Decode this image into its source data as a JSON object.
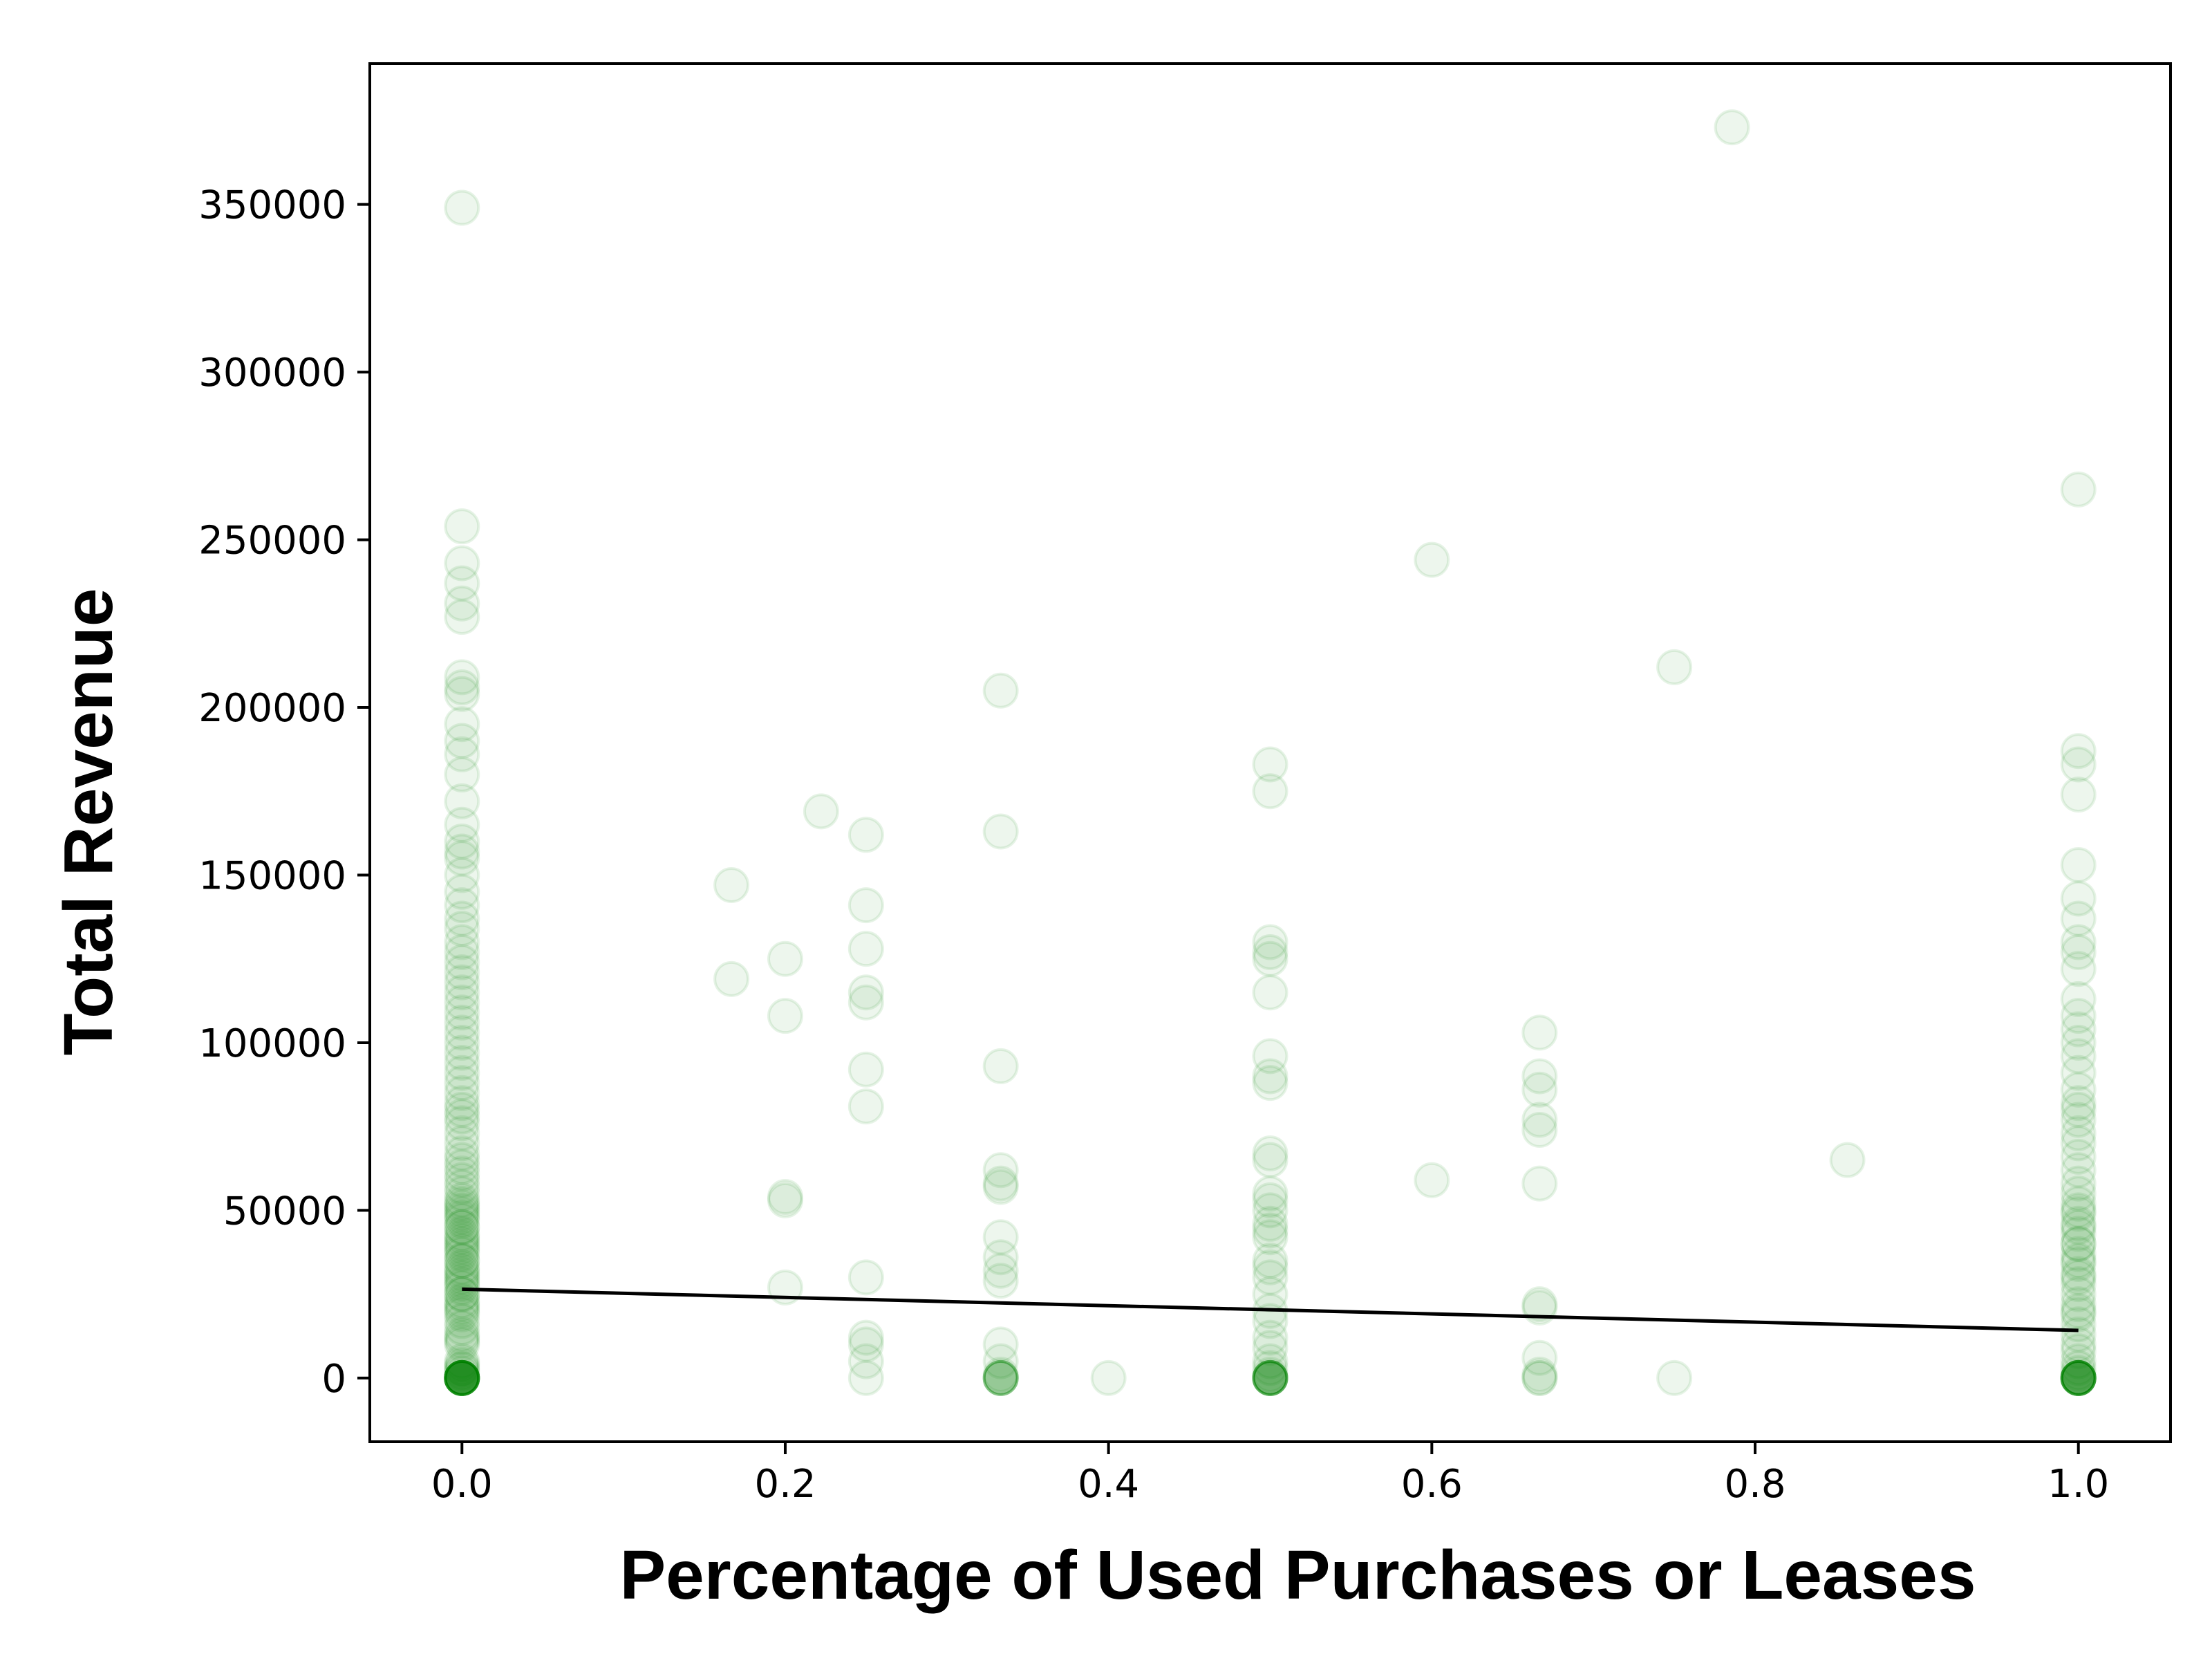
{
  "chart_data": {
    "type": "scatter",
    "title": "",
    "xlabel": "Percentage of Used Purchases or Leases",
    "ylabel": "Total Revenue",
    "xlim": [
      -0.057,
      1.057
    ],
    "ylim": [
      -19000,
      392000
    ],
    "x_ticks": [
      0.0,
      0.2,
      0.4,
      0.6,
      0.8,
      1.0
    ],
    "x_tick_labels": [
      "0.0",
      "0.2",
      "0.4",
      "0.6",
      "0.8",
      "1.0"
    ],
    "y_ticks": [
      0,
      50000,
      100000,
      150000,
      200000,
      250000,
      300000,
      350000
    ],
    "y_tick_labels": [
      "0",
      "50000",
      "100000",
      "150000",
      "200000",
      "250000",
      "300000",
      "350000"
    ],
    "grid": false,
    "legend": "none",
    "colors": {
      "points": "#008000",
      "trend_line": "#000000",
      "frame": "#000000"
    },
    "point_alpha": 0.07,
    "series": [
      {
        "type": "scatter",
        "points": [
          [
            0,
            0
          ],
          [
            0,
            0
          ],
          [
            0,
            0
          ],
          [
            0,
            0
          ],
          [
            0,
            0
          ],
          [
            0,
            0
          ],
          [
            0,
            0
          ],
          [
            0,
            0
          ],
          [
            0,
            0
          ],
          [
            0,
            0
          ],
          [
            0,
            0
          ],
          [
            0,
            0
          ],
          [
            0,
            0
          ],
          [
            0,
            0
          ],
          [
            0,
            0
          ],
          [
            0,
            0
          ],
          [
            0,
            0
          ],
          [
            0,
            0
          ],
          [
            0,
            0
          ],
          [
            0,
            0
          ],
          [
            0,
            1500
          ],
          [
            0,
            2500
          ],
          [
            0,
            3000
          ],
          [
            0,
            4000
          ],
          [
            0,
            5000
          ],
          [
            0,
            10000
          ],
          [
            0,
            11000
          ],
          [
            0,
            12000
          ],
          [
            0,
            13000
          ],
          [
            0,
            15000
          ],
          [
            0,
            17000
          ],
          [
            0,
            19000
          ],
          [
            0,
            21000
          ],
          [
            0,
            23000
          ],
          [
            0,
            25000
          ],
          [
            0,
            27000
          ],
          [
            0,
            29000
          ],
          [
            0,
            31000
          ],
          [
            0,
            33000
          ],
          [
            0,
            35000
          ],
          [
            0,
            37000
          ],
          [
            0,
            39000
          ],
          [
            0,
            41000
          ],
          [
            0,
            43000
          ],
          [
            0,
            45000
          ],
          [
            0,
            47000
          ],
          [
            0,
            49000
          ],
          [
            0,
            51000
          ],
          [
            0,
            53000
          ],
          [
            0,
            55000
          ],
          [
            0,
            57000
          ],
          [
            0,
            59000
          ],
          [
            0,
            20000
          ],
          [
            0,
            30000
          ],
          [
            0,
            40000
          ],
          [
            0,
            50000
          ],
          [
            0,
            45000
          ],
          [
            0,
            35000
          ],
          [
            0,
            25000
          ],
          [
            0,
            32000
          ],
          [
            0,
            38000
          ],
          [
            0,
            42000
          ],
          [
            0,
            48000
          ],
          [
            0,
            52000
          ],
          [
            0,
            28000
          ],
          [
            0,
            22000
          ],
          [
            0,
            61000
          ],
          [
            0,
            63000
          ],
          [
            0,
            65000
          ],
          [
            0,
            67000
          ],
          [
            0,
            70000
          ],
          [
            0,
            73000
          ],
          [
            0,
            76000
          ],
          [
            0,
            78000
          ],
          [
            0,
            80000
          ],
          [
            0,
            82000
          ],
          [
            0,
            85000
          ],
          [
            0,
            88000
          ],
          [
            0,
            91000
          ],
          [
            0,
            94000
          ],
          [
            0,
            97000
          ],
          [
            0,
            100000
          ],
          [
            0,
            103000
          ],
          [
            0,
            106000
          ],
          [
            0,
            109000
          ],
          [
            0,
            112000
          ],
          [
            0,
            115000
          ],
          [
            0,
            118000
          ],
          [
            0,
            121000
          ],
          [
            0,
            124000
          ],
          [
            0,
            127000
          ],
          [
            0,
            130000
          ],
          [
            0,
            134000
          ],
          [
            0,
            137000
          ],
          [
            0,
            141000
          ],
          [
            0,
            145000
          ],
          [
            0,
            150000
          ],
          [
            0,
            155000
          ],
          [
            0,
            157000
          ],
          [
            0,
            160000
          ],
          [
            0,
            165000
          ],
          [
            0,
            172000
          ],
          [
            0,
            180000
          ],
          [
            0,
            186000
          ],
          [
            0,
            190000
          ],
          [
            0,
            195000
          ],
          [
            0,
            204000
          ],
          [
            0,
            206000
          ],
          [
            0,
            209000
          ],
          [
            0,
            227000
          ],
          [
            0,
            231000
          ],
          [
            0,
            237000
          ],
          [
            0,
            243000
          ],
          [
            0,
            254000
          ],
          [
            0,
            349000
          ],
          [
            0.1667,
            119000
          ],
          [
            0.1667,
            147000
          ],
          [
            0.2,
            27000
          ],
          [
            0.2,
            53000
          ],
          [
            0.2,
            54000
          ],
          [
            0.2,
            108000
          ],
          [
            0.2,
            125000
          ],
          [
            0.2222,
            169000
          ],
          [
            0.25,
            0
          ],
          [
            0.25,
            5000
          ],
          [
            0.25,
            10000
          ],
          [
            0.25,
            12000
          ],
          [
            0.25,
            30000
          ],
          [
            0.25,
            81000
          ],
          [
            0.25,
            92000
          ],
          [
            0.25,
            112000
          ],
          [
            0.25,
            115000
          ],
          [
            0.25,
            128000
          ],
          [
            0.25,
            141000
          ],
          [
            0.25,
            162000
          ],
          [
            0.3333,
            0
          ],
          [
            0.3333,
            0
          ],
          [
            0.3333,
            0
          ],
          [
            0.3333,
            0
          ],
          [
            0.3333,
            0
          ],
          [
            0.3333,
            0
          ],
          [
            0.3333,
            1000
          ],
          [
            0.3333,
            5000
          ],
          [
            0.3333,
            10000
          ],
          [
            0.3333,
            29000
          ],
          [
            0.3333,
            32000
          ],
          [
            0.3333,
            36000
          ],
          [
            0.3333,
            42000
          ],
          [
            0.3333,
            57000
          ],
          [
            0.3333,
            58000
          ],
          [
            0.3333,
            62000
          ],
          [
            0.3333,
            93000
          ],
          [
            0.3333,
            163000
          ],
          [
            0.3333,
            205000
          ],
          [
            0.4,
            0
          ],
          [
            0.5,
            0
          ],
          [
            0.5,
            0
          ],
          [
            0.5,
            0
          ],
          [
            0.5,
            0
          ],
          [
            0.5,
            0
          ],
          [
            0.5,
            0
          ],
          [
            0.5,
            0
          ],
          [
            0.5,
            0
          ],
          [
            0.5,
            0
          ],
          [
            0.5,
            0
          ],
          [
            0.5,
            1000
          ],
          [
            0.5,
            3000
          ],
          [
            0.5,
            5000
          ],
          [
            0.5,
            9000
          ],
          [
            0.5,
            12000
          ],
          [
            0.5,
            17000
          ],
          [
            0.5,
            20000
          ],
          [
            0.5,
            25000
          ],
          [
            0.5,
            30000
          ],
          [
            0.5,
            33000
          ],
          [
            0.5,
            35000
          ],
          [
            0.5,
            42000
          ],
          [
            0.5,
            44000
          ],
          [
            0.5,
            46000
          ],
          [
            0.5,
            50000
          ],
          [
            0.5,
            53000
          ],
          [
            0.5,
            55000
          ],
          [
            0.5,
            65000
          ],
          [
            0.5,
            67000
          ],
          [
            0.5,
            88000
          ],
          [
            0.5,
            90000
          ],
          [
            0.5,
            96000
          ],
          [
            0.5,
            115000
          ],
          [
            0.5,
            125000
          ],
          [
            0.5,
            127000
          ],
          [
            0.5,
            130000
          ],
          [
            0.5,
            175000
          ],
          [
            0.5,
            183000
          ],
          [
            0.6,
            59000
          ],
          [
            0.6,
            244000
          ],
          [
            0.6667,
            0
          ],
          [
            0.6667,
            0
          ],
          [
            0.6667,
            1000
          ],
          [
            0.6667,
            6000
          ],
          [
            0.6667,
            21000
          ],
          [
            0.6667,
            22000
          ],
          [
            0.6667,
            58000
          ],
          [
            0.6667,
            74000
          ],
          [
            0.6667,
            77000
          ],
          [
            0.6667,
            86000
          ],
          [
            0.6667,
            90000
          ],
          [
            0.6667,
            103000
          ],
          [
            0.75,
            0
          ],
          [
            0.75,
            212000
          ],
          [
            0.7857,
            373000
          ],
          [
            0.8571,
            65000
          ],
          [
            1,
            0
          ],
          [
            1,
            0
          ],
          [
            1,
            0
          ],
          [
            1,
            0
          ],
          [
            1,
            0
          ],
          [
            1,
            0
          ],
          [
            1,
            0
          ],
          [
            1,
            0
          ],
          [
            1,
            0
          ],
          [
            1,
            0
          ],
          [
            1,
            0
          ],
          [
            1,
            0
          ],
          [
            1,
            0
          ],
          [
            1,
            0
          ],
          [
            1,
            0
          ],
          [
            1,
            1500
          ],
          [
            1,
            3000
          ],
          [
            1,
            5000
          ],
          [
            1,
            8000
          ],
          [
            1,
            10000
          ],
          [
            1,
            13000
          ],
          [
            1,
            16000
          ],
          [
            1,
            19000
          ],
          [
            1,
            22000
          ],
          [
            1,
            25000
          ],
          [
            1,
            28000
          ],
          [
            1,
            31000
          ],
          [
            1,
            34000
          ],
          [
            1,
            37000
          ],
          [
            1,
            40000
          ],
          [
            1,
            43000
          ],
          [
            1,
            46000
          ],
          [
            1,
            49000
          ],
          [
            1,
            52000
          ],
          [
            1,
            55000
          ],
          [
            1,
            58000
          ],
          [
            1,
            20000
          ],
          [
            1,
            30000
          ],
          [
            1,
            40000
          ],
          [
            1,
            50000
          ],
          [
            1,
            45000
          ],
          [
            1,
            35000
          ],
          [
            1,
            62000
          ],
          [
            1,
            66000
          ],
          [
            1,
            70000
          ],
          [
            1,
            73000
          ],
          [
            1,
            77000
          ],
          [
            1,
            80000
          ],
          [
            1,
            82000
          ],
          [
            1,
            86000
          ],
          [
            1,
            91000
          ],
          [
            1,
            96000
          ],
          [
            1,
            100000
          ],
          [
            1,
            104000
          ],
          [
            1,
            108000
          ],
          [
            1,
            113000
          ],
          [
            1,
            122000
          ],
          [
            1,
            127000
          ],
          [
            1,
            130000
          ],
          [
            1,
            137000
          ],
          [
            1,
            143000
          ],
          [
            1,
            153000
          ],
          [
            1,
            174000
          ],
          [
            1,
            183000
          ],
          [
            1,
            187000
          ],
          [
            1,
            265000
          ]
        ]
      },
      {
        "type": "line",
        "x": [
          0.0,
          1.0
        ],
        "y": [
          26500,
          14200
        ]
      }
    ]
  }
}
